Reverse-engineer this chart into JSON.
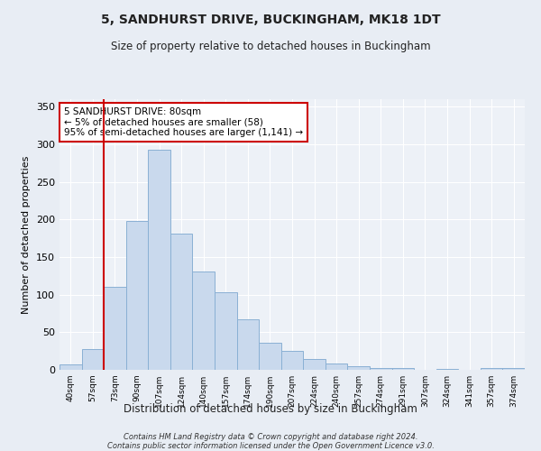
{
  "title1": "5, SANDHURST DRIVE, BUCKINGHAM, MK18 1DT",
  "title2": "Size of property relative to detached houses in Buckingham",
  "xlabel": "Distribution of detached houses by size in Buckingham",
  "ylabel": "Number of detached properties",
  "footer1": "Contains HM Land Registry data © Crown copyright and database right 2024.",
  "footer2": "Contains public sector information licensed under the Open Government Licence v3.0.",
  "categories": [
    "40sqm",
    "57sqm",
    "73sqm",
    "90sqm",
    "107sqm",
    "124sqm",
    "140sqm",
    "157sqm",
    "174sqm",
    "190sqm",
    "207sqm",
    "224sqm",
    "240sqm",
    "257sqm",
    "274sqm",
    "291sqm",
    "307sqm",
    "324sqm",
    "341sqm",
    "357sqm",
    "374sqm"
  ],
  "values": [
    7,
    28,
    110,
    198,
    293,
    181,
    131,
    103,
    67,
    36,
    25,
    15,
    9,
    5,
    3,
    3,
    0,
    1,
    0,
    3,
    2
  ],
  "bar_color": "#c9d9ed",
  "bar_edge_color": "#8ab0d4",
  "vline_color": "#cc0000",
  "vline_x_index": 2.0,
  "annotation_text": "5 SANDHURST DRIVE: 80sqm\n← 5% of detached houses are smaller (58)\n95% of semi-detached houses are larger (1,141) →",
  "annotation_box_color": "#ffffff",
  "annotation_box_edge": "#cc0000",
  "ylim": [
    0,
    360
  ],
  "yticks": [
    0,
    50,
    100,
    150,
    200,
    250,
    300,
    350
  ],
  "background_color": "#e8edf4",
  "plot_bg_color": "#edf1f7",
  "grid_color": "#ffffff"
}
